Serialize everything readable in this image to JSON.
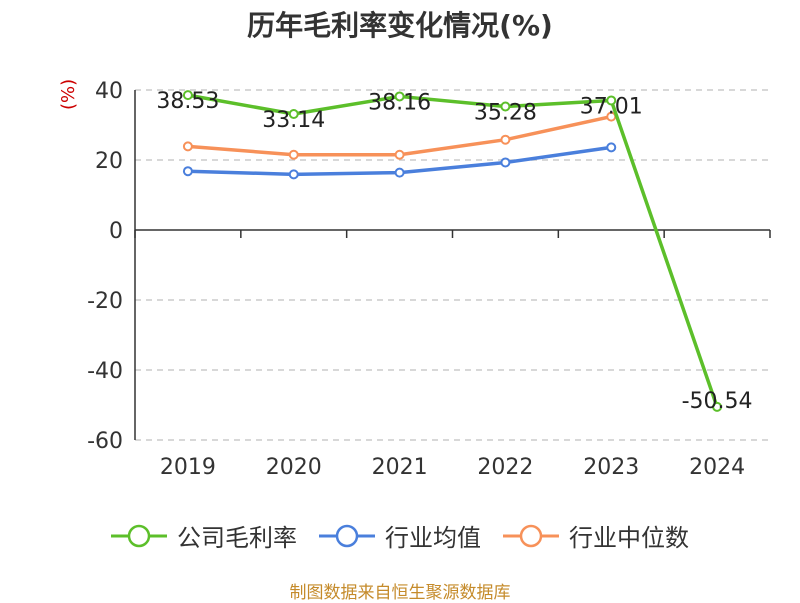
{
  "chart_data": {
    "type": "line",
    "title": "历年毛利率变化情况(%)",
    "ylabel": "(%)",
    "xlabel": "",
    "categories": [
      "2019",
      "2020",
      "2021",
      "2022",
      "2023",
      "2024"
    ],
    "ylim": [
      -60,
      40
    ],
    "yticks": [
      40,
      20,
      0,
      -20,
      -40,
      -60
    ],
    "grid": true,
    "legend_position": "bottom",
    "series": [
      {
        "name": "公司毛利率",
        "color": "#5cbf2a",
        "values": [
          38.53,
          33.14,
          38.16,
          35.28,
          37.01,
          -50.54
        ],
        "labels": [
          "38.53",
          "33.14",
          "38.16",
          "35.28",
          "37.01",
          "-50.54"
        ]
      },
      {
        "name": "行业均值",
        "color": "#4a7fdc",
        "values": [
          16.8,
          15.9,
          16.4,
          19.3,
          23.6,
          null
        ]
      },
      {
        "name": "行业中位数",
        "color": "#f79159",
        "values": [
          23.9,
          21.5,
          21.5,
          25.8,
          32.4,
          null
        ]
      }
    ]
  },
  "source_text": "制图数据来自恒生聚源数据库"
}
